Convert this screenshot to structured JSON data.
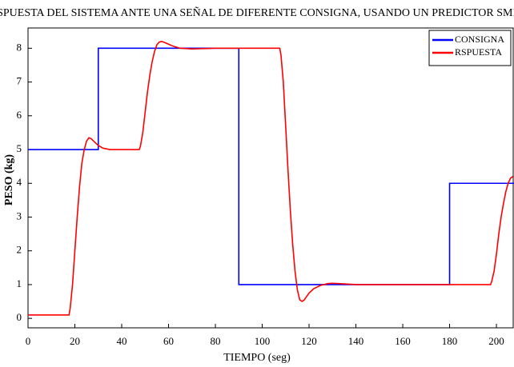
{
  "chart_data": {
    "type": "line",
    "title": "RESPUESTA DEL SISTEMA ANTE UNA SEÑAL DE DIFERENTE CONSIGNA, USANDO UN PREDICTOR SMITH",
    "x_label": "TIEMPO (seg)",
    "y_label": "PESO (kg)",
    "xlim": [
      0,
      207.5
    ],
    "ylim": [
      -0.28,
      8.6
    ],
    "xticks": [
      0,
      20,
      40,
      60,
      80,
      100,
      120,
      140,
      160,
      180,
      200
    ],
    "yticks": [
      0,
      1,
      2,
      3,
      4,
      5,
      6,
      7,
      8
    ],
    "legend": "top-right",
    "series": [
      {
        "name": "CONSIGNA",
        "color": "#0000ff",
        "x": [
          0,
          30,
          30,
          90,
          90,
          180,
          180,
          207.5
        ],
        "values": [
          5,
          5,
          8,
          8,
          1,
          1,
          4,
          4
        ]
      },
      {
        "name": "RSPUESTA",
        "color": "#ff0000",
        "x": [
          0,
          17.5,
          18,
          19,
          20,
          21,
          22,
          23,
          24,
          25,
          26,
          27,
          28,
          30,
          32,
          35,
          40,
          45,
          47.5,
          48,
          49,
          50,
          51,
          52,
          53,
          54,
          55,
          56,
          57,
          58,
          60,
          62,
          65,
          70,
          80,
          100,
          107.5,
          108,
          109,
          110,
          111,
          112,
          113,
          114,
          115,
          116,
          117,
          118,
          119,
          120,
          122,
          125,
          128,
          130,
          135,
          140,
          160,
          180,
          197.5,
          198,
          199,
          200,
          201,
          202,
          203,
          204,
          205,
          206,
          207
        ],
        "values": [
          0.1,
          0.1,
          0.3,
          1.0,
          2.0,
          3.0,
          3.9,
          4.6,
          5.0,
          5.25,
          5.35,
          5.32,
          5.25,
          5.12,
          5.04,
          5.0,
          5.0,
          5.0,
          5.0,
          5.1,
          5.5,
          6.1,
          6.7,
          7.2,
          7.6,
          7.9,
          8.1,
          8.18,
          8.2,
          8.18,
          8.12,
          8.06,
          8.0,
          7.98,
          8.0,
          8.0,
          8.0,
          7.8,
          7.0,
          5.7,
          4.4,
          3.2,
          2.2,
          1.4,
          0.85,
          0.55,
          0.5,
          0.55,
          0.65,
          0.75,
          0.88,
          0.98,
          1.03,
          1.04,
          1.02,
          1.0,
          1.0,
          1.0,
          1.0,
          1.1,
          1.4,
          1.9,
          2.5,
          3.0,
          3.4,
          3.75,
          4.0,
          4.15,
          4.2
        ]
      }
    ]
  }
}
